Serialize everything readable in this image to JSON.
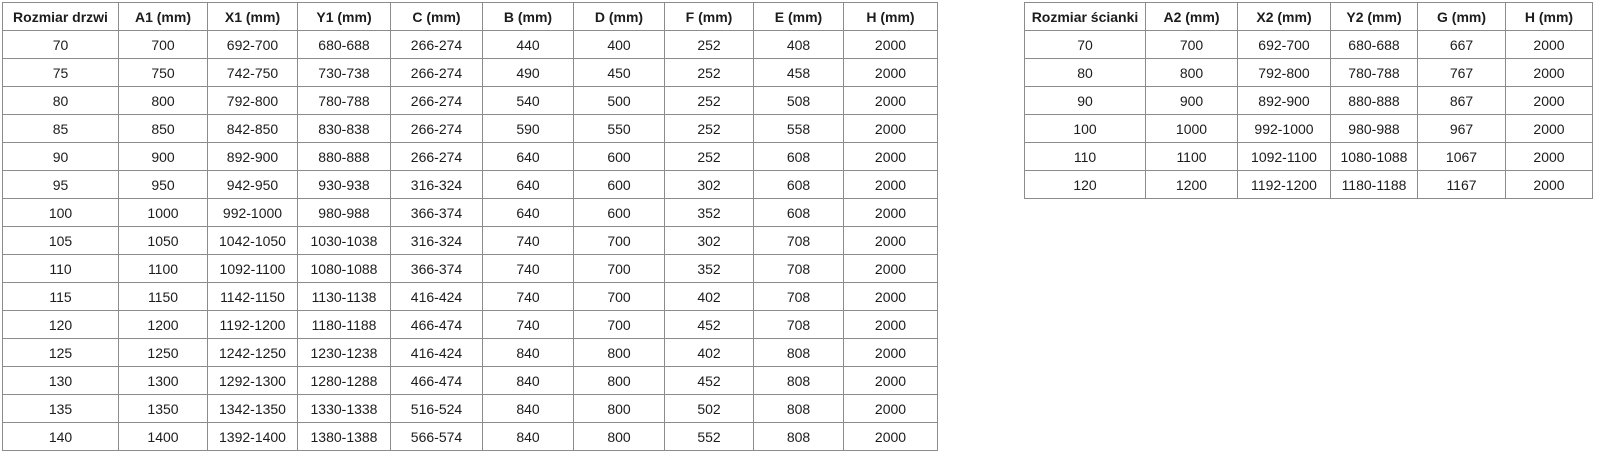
{
  "page": {
    "background": "#ffffff",
    "border_color": "#8c8c8c",
    "text_color": "#1c1c1c"
  },
  "doors_table": {
    "headers": [
      "Rozmiar drzwi",
      "A1 (mm)",
      "X1 (mm)",
      "Y1 (mm)",
      "C (mm)",
      "B (mm)",
      "D (mm)",
      "F (mm)",
      "E (mm)",
      "H (mm)"
    ],
    "rows": [
      [
        "70",
        "700",
        "692-700",
        "680-688",
        "266-274",
        "440",
        "400",
        "252",
        "408",
        "2000"
      ],
      [
        "75",
        "750",
        "742-750",
        "730-738",
        "266-274",
        "490",
        "450",
        "252",
        "458",
        "2000"
      ],
      [
        "80",
        "800",
        "792-800",
        "780-788",
        "266-274",
        "540",
        "500",
        "252",
        "508",
        "2000"
      ],
      [
        "85",
        "850",
        "842-850",
        "830-838",
        "266-274",
        "590",
        "550",
        "252",
        "558",
        "2000"
      ],
      [
        "90",
        "900",
        "892-900",
        "880-888",
        "266-274",
        "640",
        "600",
        "252",
        "608",
        "2000"
      ],
      [
        "95",
        "950",
        "942-950",
        "930-938",
        "316-324",
        "640",
        "600",
        "302",
        "608",
        "2000"
      ],
      [
        "100",
        "1000",
        "992-1000",
        "980-988",
        "366-374",
        "640",
        "600",
        "352",
        "608",
        "2000"
      ],
      [
        "105",
        "1050",
        "1042-1050",
        "1030-1038",
        "316-324",
        "740",
        "700",
        "302",
        "708",
        "2000"
      ],
      [
        "110",
        "1100",
        "1092-1100",
        "1080-1088",
        "366-374",
        "740",
        "700",
        "352",
        "708",
        "2000"
      ],
      [
        "115",
        "1150",
        "1142-1150",
        "1130-1138",
        "416-424",
        "740",
        "700",
        "402",
        "708",
        "2000"
      ],
      [
        "120",
        "1200",
        "1192-1200",
        "1180-1188",
        "466-474",
        "740",
        "700",
        "452",
        "708",
        "2000"
      ],
      [
        "125",
        "1250",
        "1242-1250",
        "1230-1238",
        "416-424",
        "840",
        "800",
        "402",
        "808",
        "2000"
      ],
      [
        "130",
        "1300",
        "1292-1300",
        "1280-1288",
        "466-474",
        "840",
        "800",
        "452",
        "808",
        "2000"
      ],
      [
        "135",
        "1350",
        "1342-1350",
        "1330-1338",
        "516-524",
        "840",
        "800",
        "502",
        "808",
        "2000"
      ],
      [
        "140",
        "1400",
        "1392-1400",
        "1380-1388",
        "566-574",
        "840",
        "800",
        "552",
        "808",
        "2000"
      ]
    ]
  },
  "wall_table": {
    "headers": [
      "Rozmiar ścianki",
      "A2 (mm)",
      "X2 (mm)",
      "Y2 (mm)",
      "G (mm)",
      "H (mm)"
    ],
    "rows": [
      [
        "70",
        "700",
        "692-700",
        "680-688",
        "667",
        "2000"
      ],
      [
        "80",
        "800",
        "792-800",
        "780-788",
        "767",
        "2000"
      ],
      [
        "90",
        "900",
        "892-900",
        "880-888",
        "867",
        "2000"
      ],
      [
        "100",
        "1000",
        "992-1000",
        "980-988",
        "967",
        "2000"
      ],
      [
        "110",
        "1100",
        "1092-1100",
        "1080-1088",
        "1067",
        "2000"
      ],
      [
        "120",
        "1200",
        "1192-1200",
        "1180-1188",
        "1167",
        "2000"
      ]
    ]
  }
}
